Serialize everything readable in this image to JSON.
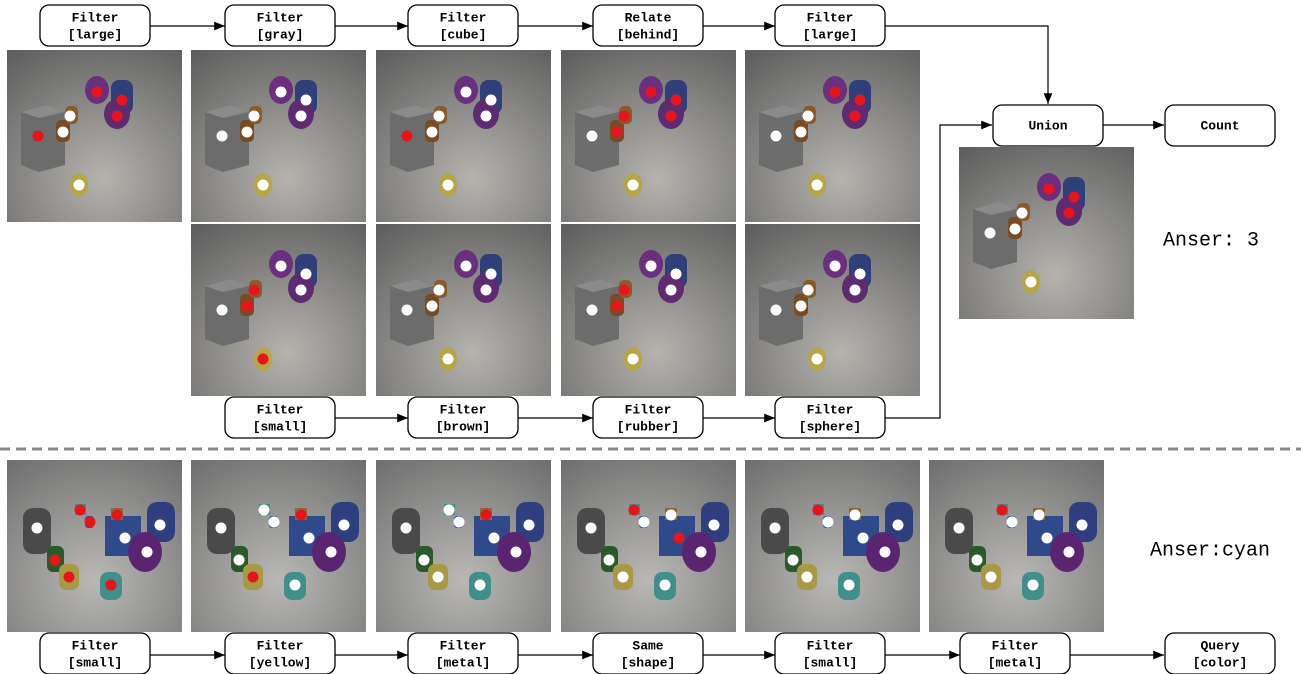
{
  "upper": {
    "top_row": [
      {
        "op": "Filter",
        "arg": "[large]"
      },
      {
        "op": "Filter",
        "arg": "[gray]"
      },
      {
        "op": "Filter",
        "arg": "[cube]"
      },
      {
        "op": "Relate",
        "arg": "[behind]"
      },
      {
        "op": "Filter",
        "arg": "[large]"
      }
    ],
    "bottom_row": [
      {
        "op": "Filter",
        "arg": "[small]"
      },
      {
        "op": "Filter",
        "arg": "[brown]"
      },
      {
        "op": "Filter",
        "arg": "[rubber]"
      },
      {
        "op": "Filter",
        "arg": "[sphere]"
      }
    ],
    "union": "Union",
    "count": "Count",
    "answer": "Anser: 3"
  },
  "lower": {
    "nodes": [
      {
        "op": "Filter",
        "arg": "[small]"
      },
      {
        "op": "Filter",
        "arg": "[yellow]"
      },
      {
        "op": "Filter",
        "arg": "[metal]"
      },
      {
        "op": "Same",
        "arg": "[shape]"
      },
      {
        "op": "Filter",
        "arg": "[small]"
      },
      {
        "op": "Filter",
        "arg": "[metal]"
      },
      {
        "op": "Query",
        "arg": "[color]"
      }
    ],
    "answer": "Anser:cyan"
  }
}
